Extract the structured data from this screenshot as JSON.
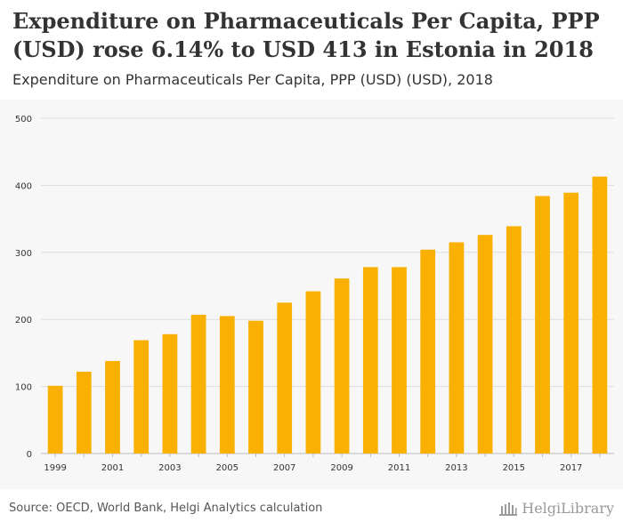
{
  "header": {
    "title": "Expenditure on Pharmaceuticals Per Capita, PPP (USD) rose 6.14% to USD 413 in Estonia in 2018",
    "subtitle": "Expenditure on Pharmaceuticals Per Capita, PPP (USD) (USD), 2018"
  },
  "footer": {
    "source": "Source: OECD, World Bank, Helgi Analytics calculation",
    "logo_text": "HelgiLibrary"
  },
  "colors": {
    "bar": "#f9b000",
    "grid": "#dddddd",
    "text": "#333333"
  },
  "chart_data": {
    "type": "bar",
    "title": "Expenditure on Pharmaceuticals Per Capita, PPP (USD) rose 6.14% to USD 413 in Estonia in 2018",
    "subtitle": "Expenditure on Pharmaceuticals Per Capita, PPP (USD) (USD), 2018",
    "categories": [
      "1999",
      "2000",
      "2001",
      "2002",
      "2003",
      "2004",
      "2005",
      "2006",
      "2007",
      "2008",
      "2009",
      "2010",
      "2011",
      "2012",
      "2013",
      "2014",
      "2015",
      "2016",
      "2017",
      "2018"
    ],
    "values": [
      101,
      122,
      138,
      169,
      178,
      207,
      205,
      198,
      225,
      242,
      261,
      278,
      278,
      304,
      315,
      326,
      339,
      384,
      389,
      413
    ],
    "x_tick_labels": [
      "1999",
      "2001",
      "2003",
      "2005",
      "2007",
      "2009",
      "2011",
      "2013",
      "2015",
      "2017"
    ],
    "y_ticks": [
      0,
      100,
      200,
      300,
      400,
      500
    ],
    "ylim": [
      0,
      500
    ],
    "xlabel": "",
    "ylabel": "",
    "grid": true,
    "legend": "none"
  }
}
